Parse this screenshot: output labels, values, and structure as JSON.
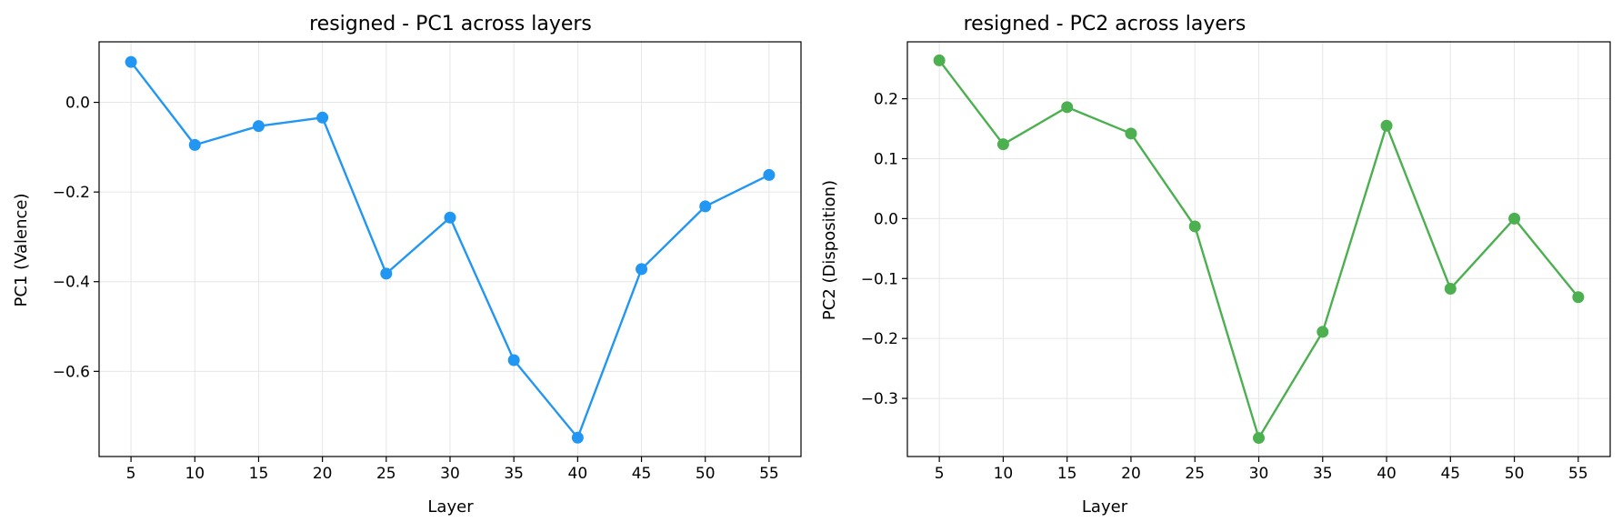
{
  "chart_data": [
    {
      "type": "line",
      "title": "resigned - PC1 across layers",
      "xlabel": "Layer",
      "ylabel": "PC1 (Valence)",
      "x": [
        5,
        10,
        15,
        20,
        25,
        30,
        35,
        40,
        45,
        50,
        55
      ],
      "series": [
        {
          "color": "#2196f3",
          "values": [
            0.09,
            -0.095,
            -0.053,
            -0.034,
            -0.382,
            -0.257,
            -0.575,
            -0.748,
            -0.372,
            -0.232,
            -0.162
          ]
        }
      ],
      "xlim": [
        2.5,
        57.5
      ],
      "ylim": [
        -0.79,
        0.135
      ],
      "xticks": [
        5,
        10,
        15,
        20,
        25,
        30,
        35,
        40,
        45,
        50,
        55
      ],
      "xtick_labels": [
        "5",
        "10",
        "15",
        "20",
        "25",
        "30",
        "35",
        "40",
        "45",
        "50",
        "55"
      ],
      "yticks": [
        0.0,
        -0.2,
        -0.4,
        -0.6
      ],
      "ytick_labels": [
        "0.0",
        "−0.2",
        "−0.4",
        "−0.6"
      ],
      "grid": true
    },
    {
      "type": "line",
      "title": "resigned - PC2 across layers",
      "xlabel": "Layer",
      "ylabel": "PC2 (Disposition)",
      "x": [
        5,
        10,
        15,
        20,
        25,
        30,
        35,
        40,
        45,
        50,
        55
      ],
      "series": [
        {
          "color": "#4caf50",
          "values": [
            0.264,
            0.124,
            0.186,
            0.142,
            -0.013,
            -0.366,
            -0.189,
            0.155,
            -0.117,
            0.0,
            -0.131
          ]
        }
      ],
      "xlim": [
        2.5,
        57.5
      ],
      "ylim": [
        -0.397,
        0.295
      ],
      "xticks": [
        5,
        10,
        15,
        20,
        25,
        30,
        35,
        40,
        45,
        50,
        55
      ],
      "xtick_labels": [
        "5",
        "10",
        "15",
        "20",
        "25",
        "30",
        "35",
        "40",
        "45",
        "50",
        "55"
      ],
      "yticks": [
        0.2,
        0.1,
        0.0,
        -0.1,
        -0.2,
        -0.3
      ],
      "ytick_labels": [
        "0.2",
        "0.1",
        "0.0",
        "−0.1",
        "−0.2",
        "−0.3"
      ],
      "grid": true
    }
  ]
}
